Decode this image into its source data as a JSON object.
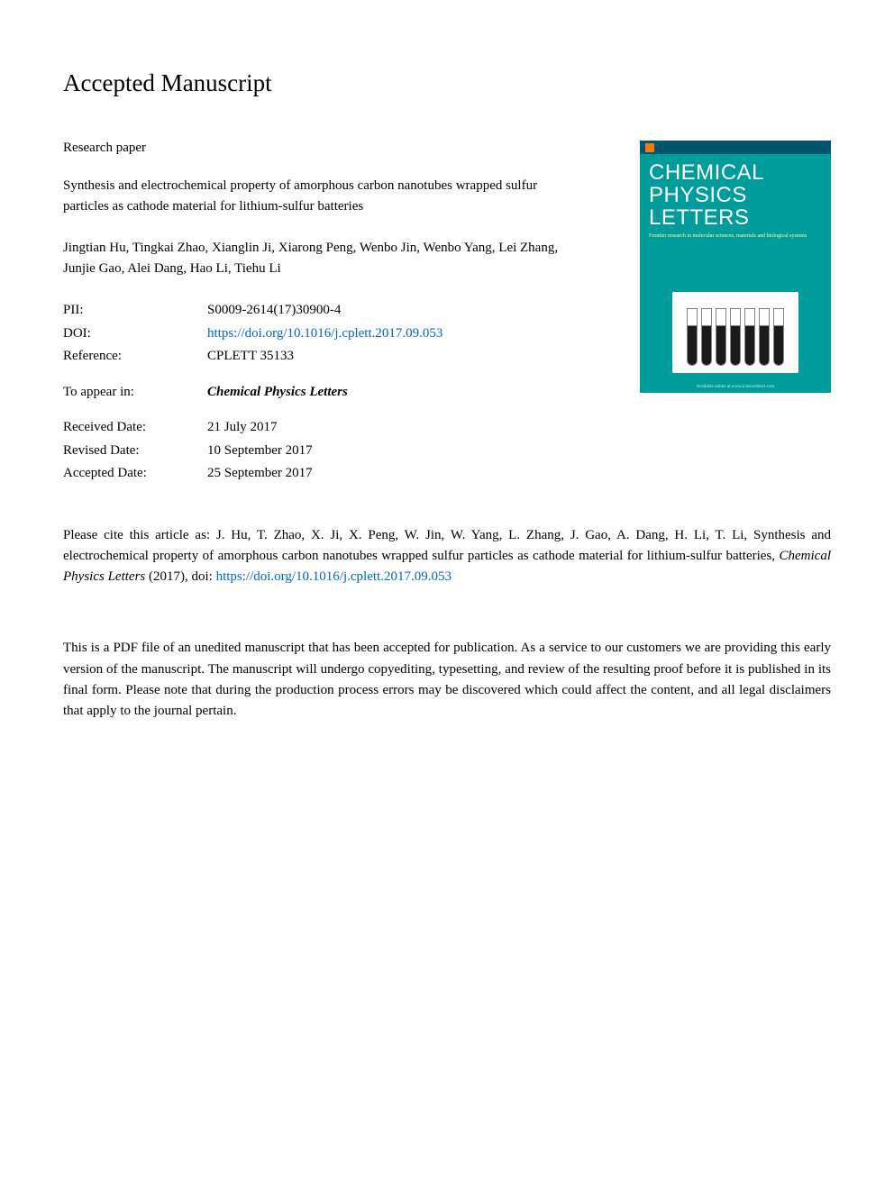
{
  "header": "Accepted Manuscript",
  "category": "Research paper",
  "title": "Synthesis and electrochemical property of amorphous carbon nanotubes wrapped sulfur particles as cathode material for lithium-sulfur batteries",
  "authors": "Jingtian Hu, Tingkai Zhao, Xianglin Ji, Xiarong Peng, Wenbo Jin, Wenbo Yang, Lei Zhang, Junjie Gao, Alei Dang, Hao Li, Tiehu Li",
  "meta": {
    "pii": {
      "label": "PII:",
      "value": "S0009-2614(17)30900-4"
    },
    "doi": {
      "label": "DOI:",
      "value": "https://doi.org/10.1016/j.cplett.2017.09.053"
    },
    "reference": {
      "label": "Reference:",
      "value": "CPLETT 35133"
    },
    "to_appear": {
      "label": "To appear in:",
      "value": "Chemical Physics Letters"
    },
    "received": {
      "label": "Received Date:",
      "value": "21 July 2017"
    },
    "revised": {
      "label": "Revised Date:",
      "value": "10 September 2017"
    },
    "accepted": {
      "label": "Accepted Date:",
      "value": "25 September 2017"
    }
  },
  "citation": {
    "prefix": "Please cite this article as: J. Hu, T. Zhao, X. Ji, X. Peng, W. Jin, W. Yang, L. Zhang, J. Gao, A. Dang, H. Li, T. Li, Synthesis and electrochemical property of amorphous carbon nanotubes wrapped sulfur particles as cathode material for lithium-sulfur batteries, ",
    "journal": "Chemical Physics Letters",
    "year_doi_label": " (2017), doi: ",
    "doi_link": "https://doi.org/10.1016/j.cplett.2017.09.053"
  },
  "disclaimer": "This is a PDF file of an unedited manuscript that has been accepted for publication. As a service to our customers we are providing this early version of the manuscript. The manuscript will undergo copyediting, typesetting, and review of the resulting proof before it is published in its final form. Please note that during the production process errors may be discovered which could affect the content, and all legal disclaimers that apply to the journal pertain.",
  "cover": {
    "line1": "CHEMICAL",
    "line2": "PHYSICS",
    "line3": "LETTERS",
    "subtitle": "Frontier research in molecular sciences, materials and biological systems",
    "footer": "Available online at www.sciencedirect.com",
    "colors": {
      "background": "#009b9b",
      "topbar": "#00556e",
      "accent": "#ff7800",
      "subtitle": "#ffff99"
    }
  }
}
